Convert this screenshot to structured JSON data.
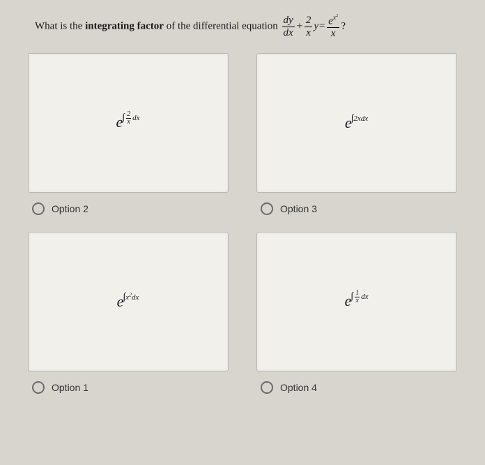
{
  "question": {
    "prefix": "What is the ",
    "bold": "integrating factor",
    "mid": " of the differential equation ",
    "eq_dy": "dy",
    "eq_dx": "dx",
    "eq_plus": "+",
    "eq_2": "2",
    "eq_x": "x",
    "eq_y": "y",
    "eq_equals": "=",
    "eq_e": "e",
    "eq_xsq": "x",
    "eq_sq": "2",
    "eq_qmark": "?"
  },
  "options": {
    "opt2": {
      "label": "Option 2",
      "e": "e",
      "int": "∫",
      "num": "2",
      "den": "x",
      "dx": "dx"
    },
    "opt3": {
      "label": "Option 3",
      "e": "e",
      "int": "∫",
      "body": "2xdx"
    },
    "opt1": {
      "label": "Option 1",
      "e": "e",
      "int": "∫",
      "body": "x",
      "sup": "2",
      "dx": "dx"
    },
    "opt4": {
      "label": "Option 4",
      "e": "e",
      "int": "∫",
      "num": "1",
      "den": "x",
      "dx": "dx"
    }
  },
  "colors": {
    "page_bg": "#d8d5cf",
    "box_bg": "#f2f0eb",
    "box_border": "#b8b5af",
    "text": "#1a1a1a",
    "radio_border": "#6b6b6b"
  }
}
